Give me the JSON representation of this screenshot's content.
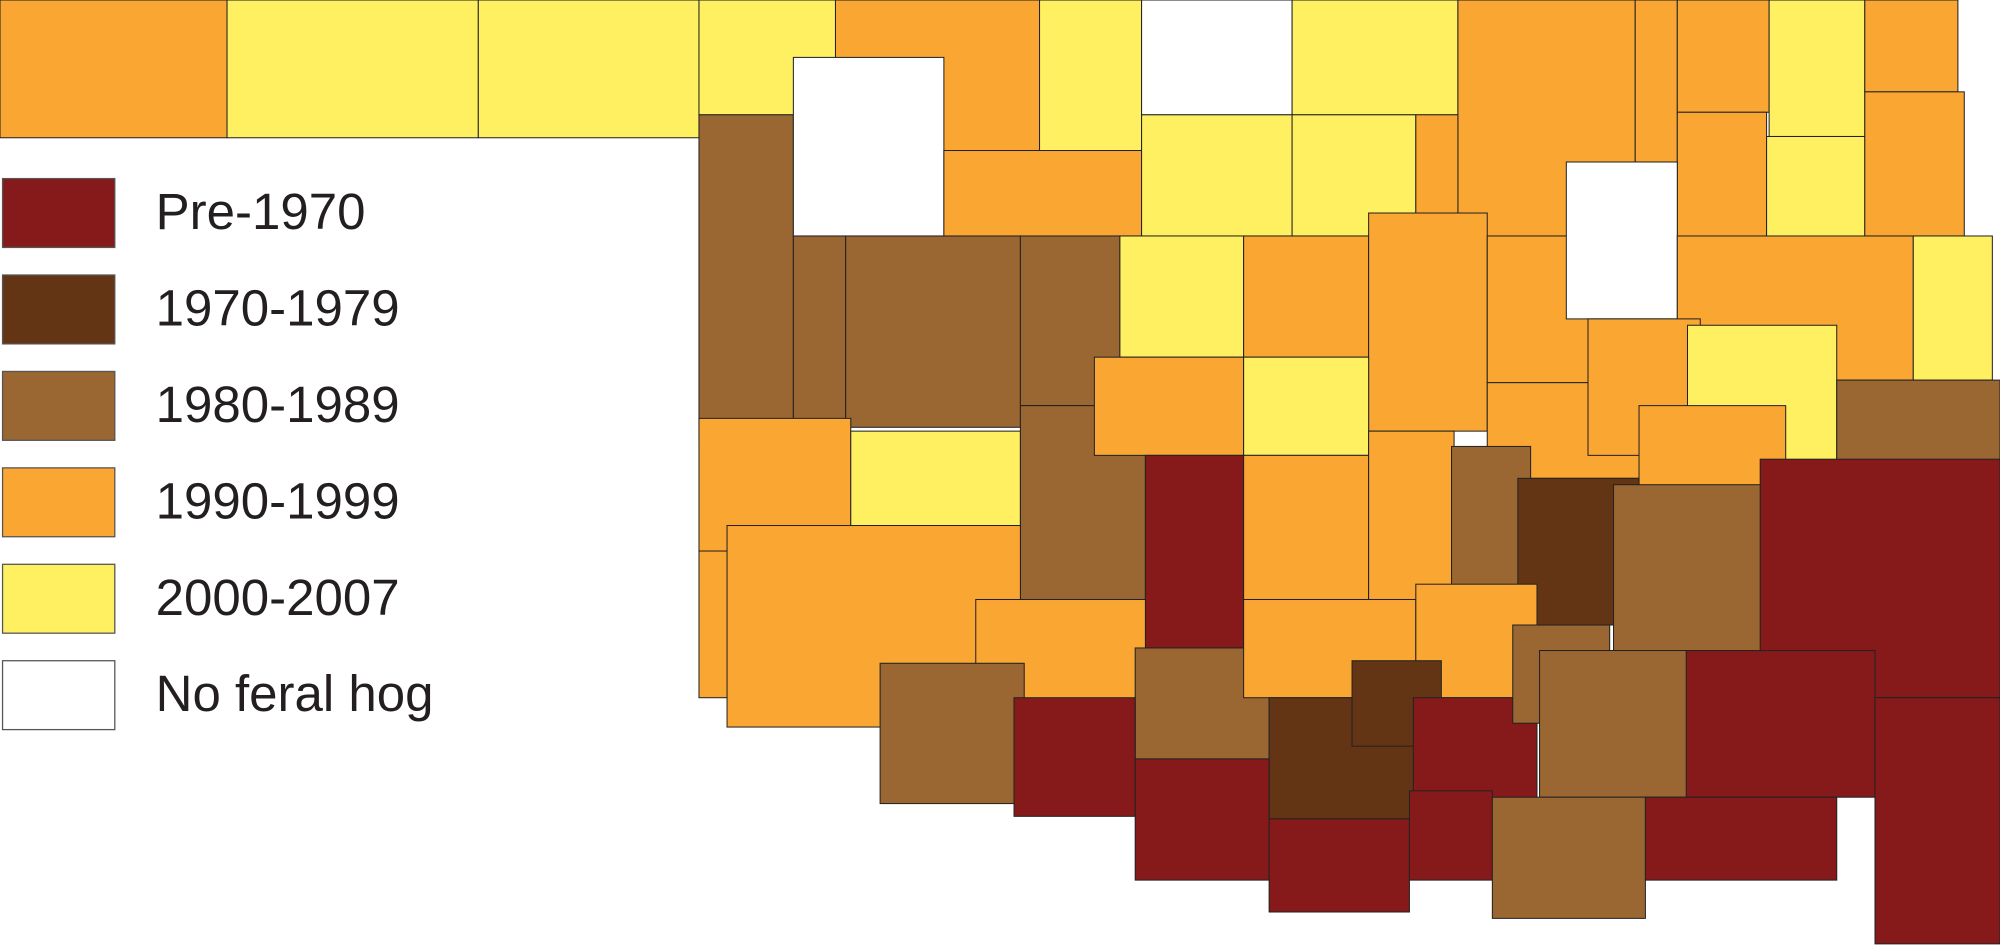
{
  "legend": [
    {
      "label": "Pre-1970",
      "color": "#861a1a"
    },
    {
      "label": "1970-1979",
      "color": "#643515"
    },
    {
      "label": "1980-1989",
      "color": "#9a6631"
    },
    {
      "label": "1990-1999",
      "color": "#faa632"
    },
    {
      "label": "2000-2007",
      "color": "#fef060"
    },
    {
      "label": "No feral hog",
      "color": "#ffffff"
    }
  ]
}
